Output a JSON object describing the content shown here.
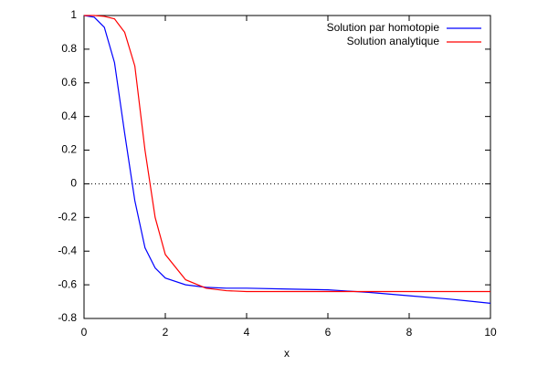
{
  "chart_data": {
    "type": "line",
    "xlabel": "x",
    "x": [
      0,
      0.25,
      0.5,
      0.75,
      1,
      1.25,
      1.5,
      1.75,
      2,
      2.5,
      3,
      3.5,
      4,
      5,
      6,
      7,
      8,
      9,
      10
    ],
    "series": [
      {
        "name": "Solution par homotopie",
        "color": "#0000ff",
        "values": [
          1,
          0.99,
          0.93,
          0.72,
          0.3,
          -0.1,
          -0.38,
          -0.5,
          -0.56,
          -0.6,
          -0.615,
          -0.62,
          -0.62,
          -0.625,
          -0.63,
          -0.645,
          -0.665,
          -0.685,
          -0.71
        ]
      },
      {
        "name": "Solution analytique",
        "color": "#ff0000",
        "values": [
          1,
          1,
          0.995,
          0.98,
          0.9,
          0.7,
          0.2,
          -0.2,
          -0.42,
          -0.57,
          -0.62,
          -0.635,
          -0.64,
          -0.64,
          -0.64,
          -0.64,
          -0.64,
          -0.64,
          -0.64
        ]
      }
    ],
    "xlim": [
      0,
      10
    ],
    "xticks": [
      0,
      2,
      4,
      6,
      8,
      10
    ],
    "ylim": [
      -0.8,
      1
    ],
    "yticks": [
      -0.8,
      -0.6,
      -0.4,
      -0.2,
      0,
      0.2,
      0.4,
      0.6,
      0.8,
      1
    ],
    "zeroaxis": true,
    "legend": "top-right"
  }
}
